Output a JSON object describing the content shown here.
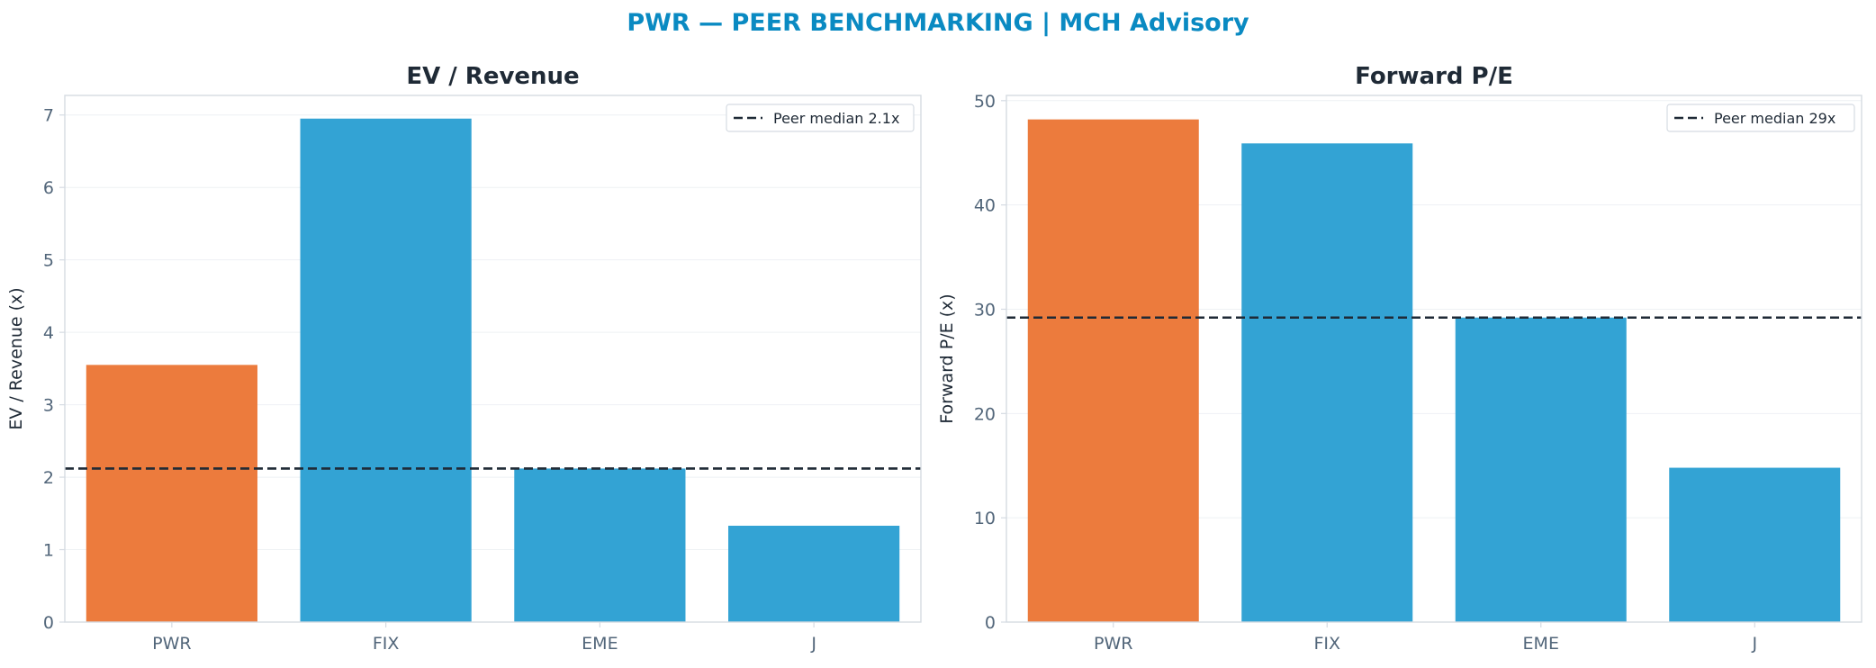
{
  "suptitle": "PWR — PEER BENCHMARKING | MCH Advisory",
  "colors": {
    "highlight": "#ec7b3d",
    "peer": "#33a3d4",
    "median_line": "#1f2a36",
    "title_text": "#1f2a36",
    "tick_text": "#52667a",
    "axis_frame": "#d5dbe2",
    "grid": "#eef1f4",
    "suptitle": "#0a8ac2"
  },
  "chart_data": [
    {
      "type": "bar",
      "title": "EV / Revenue",
      "xlabel": "",
      "ylabel": "EV / Revenue (x)",
      "categories": [
        "PWR",
        "FIX",
        "EME",
        "J"
      ],
      "values": [
        3.55,
        6.95,
        2.12,
        1.33
      ],
      "highlight_category": "PWR",
      "ylim": [
        0,
        7.27
      ],
      "yticks": [
        0,
        1,
        2,
        3,
        4,
        5,
        6,
        7
      ],
      "reference_line": {
        "value": 2.12,
        "style": "dashed",
        "label": "Peer median 2.1x"
      },
      "legend": {
        "position": "top-right",
        "entries": [
          "Peer median 2.1x"
        ]
      },
      "grid": true
    },
    {
      "type": "bar",
      "title": "Forward P/E",
      "xlabel": "",
      "ylabel": "Forward P/E (x)",
      "categories": [
        "PWR",
        "FIX",
        "EME",
        "J"
      ],
      "values": [
        48.2,
        45.9,
        29.2,
        14.8
      ],
      "highlight_category": "PWR",
      "ylim": [
        0,
        50.5
      ],
      "yticks": [
        0,
        10,
        20,
        30,
        40,
        50
      ],
      "reference_line": {
        "value": 29.2,
        "style": "dashed",
        "label": "Peer median 29x"
      },
      "legend": {
        "position": "top-right",
        "entries": [
          "Peer median 29x"
        ]
      },
      "grid": true
    }
  ]
}
